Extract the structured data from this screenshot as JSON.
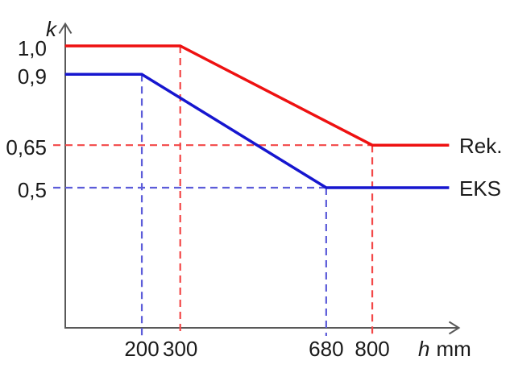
{
  "chart_data": {
    "type": "line",
    "ylabel": "k",
    "xlabel_var": "h",
    "xlabel_unit": "mm",
    "xlim": [
      0,
      1000
    ],
    "ylim": [
      0,
      1.1
    ],
    "decimal_style": "comma",
    "grid": "off",
    "legend_position": "right-of-line-ends",
    "series": [
      {
        "name": "Rek.",
        "color_key": "rek",
        "points": [
          [
            0,
            1.0
          ],
          [
            300,
            1.0
          ],
          [
            800,
            0.65
          ],
          [
            1000,
            0.65
          ]
        ]
      },
      {
        "name": "EKS",
        "color_key": "eks",
        "points": [
          [
            0,
            0.9
          ],
          [
            200,
            0.9
          ],
          [
            680,
            0.5
          ],
          [
            1000,
            0.5
          ]
        ]
      }
    ],
    "x_ticks": [
      {
        "label": "200",
        "value": 200,
        "color_key": "eks"
      },
      {
        "label": "300",
        "value": 300,
        "color_key": "rek"
      },
      {
        "label": "680",
        "value": 680,
        "color_key": "eks"
      },
      {
        "label": "800",
        "value": 800,
        "color_key": "rek"
      }
    ],
    "y_ticks": [
      {
        "label": "1,0",
        "value": 1.0,
        "color_key": "rek"
      },
      {
        "label": "0,9",
        "value": 0.9,
        "color_key": "eks"
      },
      {
        "label": "0,65",
        "value": 0.65,
        "color_key": "neutral"
      },
      {
        "label": "0,5",
        "value": 0.5,
        "color_key": "eks"
      }
    ],
    "guides": {
      "vertical": [
        {
          "x": 200,
          "from_y": 0.9,
          "color_key": "eks"
        },
        {
          "x": 300,
          "from_y": 1.0,
          "color_key": "rek"
        },
        {
          "x": 680,
          "from_y": 0.5,
          "color_key": "eks"
        },
        {
          "x": 800,
          "from_y": 0.65,
          "color_key": "rek"
        }
      ],
      "horizontal": [
        {
          "y": 0.65,
          "to_x": 800,
          "color_key": "rek"
        },
        {
          "y": 0.5,
          "to_x": 680,
          "color_key": "eks"
        }
      ]
    },
    "legend": [
      {
        "label": "Rek.",
        "at_y": 0.65,
        "color_key": "rek"
      },
      {
        "label": "EKS",
        "at_y": 0.5,
        "color_key": "eks"
      }
    ]
  },
  "colors": {
    "rek": "#ee1111",
    "eks": "#1616cf",
    "rek_dash": "#f34848",
    "eks_dash": "#5c5cd9",
    "neutral": "#1a1a1a",
    "axis": "#595959"
  }
}
